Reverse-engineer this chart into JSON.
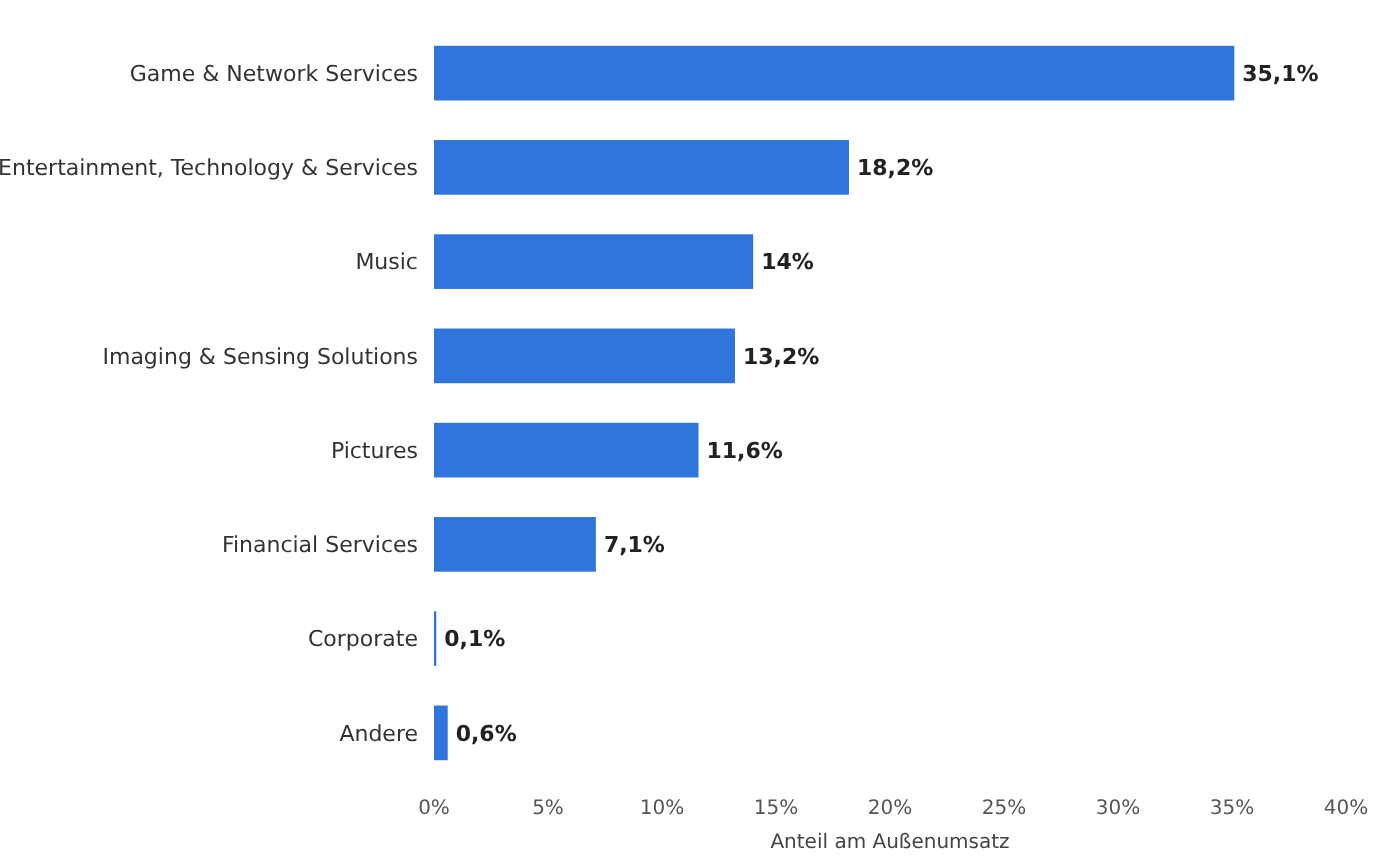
{
  "chart_data": {
    "type": "bar",
    "orientation": "horizontal",
    "xlabel": "Anteil am Außenumsatz",
    "categories": [
      "Game & Network Services",
      "Entertainment, Technology & Services",
      "Music",
      "Imaging & Sensing Solutions",
      "Pictures",
      "Financial Services",
      "Corporate",
      "Andere"
    ],
    "values": [
      35.1,
      18.2,
      14,
      13.2,
      11.6,
      7.1,
      0.1,
      0.6
    ],
    "value_labels": [
      "35,1%",
      "18,2%",
      "14%",
      "13,2%",
      "11,6%",
      "7,1%",
      "0,1%",
      "0,6%"
    ],
    "color": "#2f75dc",
    "xlim": [
      0,
      40
    ],
    "xticks": [
      {
        "value": 0,
        "label": "0%"
      },
      {
        "value": 5,
        "label": "5%"
      },
      {
        "value": 10,
        "label": "10%"
      },
      {
        "value": 15,
        "label": "15%"
      },
      {
        "value": 20,
        "label": "20%"
      },
      {
        "value": 25,
        "label": "25%"
      },
      {
        "value": 30,
        "label": "30%"
      },
      {
        "value": 35,
        "label": "35%"
      },
      {
        "value": 40,
        "label": "40%"
      }
    ],
    "grid": false
  }
}
